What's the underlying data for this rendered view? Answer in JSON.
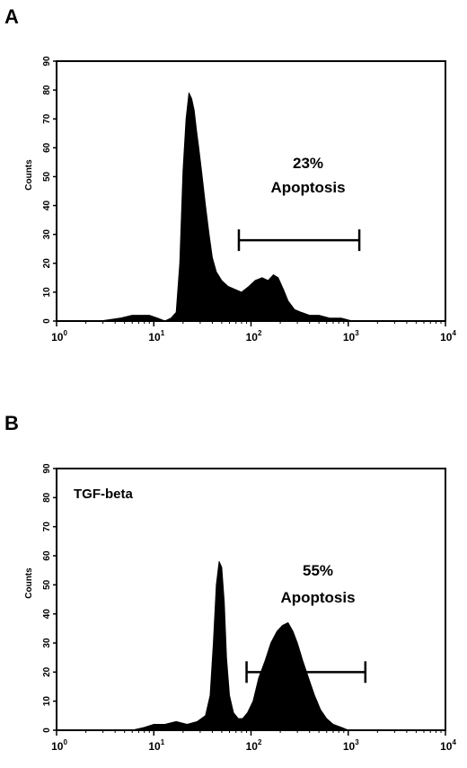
{
  "chart_data": [
    {
      "type": "area",
      "panel": "A",
      "inner_label": "",
      "ylabel": "Counts",
      "xscale": "log",
      "xlim": [
        1,
        10000
      ],
      "ylim": [
        0,
        90
      ],
      "yticks": [
        "0",
        "10",
        "20",
        "30",
        "40",
        "50",
        "60",
        "70",
        "80",
        "90"
      ],
      "xticks": [
        {
          "base": "10",
          "exp": "0"
        },
        {
          "base": "10",
          "exp": "1"
        },
        {
          "base": "10",
          "exp": "2"
        },
        {
          "base": "10",
          "exp": "3"
        },
        {
          "base": "10",
          "exp": "4"
        }
      ],
      "annotation": {
        "percent": "23%",
        "label": "Apoptosis"
      },
      "gate": {
        "from": 75,
        "to": 1300,
        "y": 28
      },
      "x": [
        2.8,
        4.5,
        6,
        9,
        11,
        13,
        15,
        17,
        18.5,
        20,
        21.5,
        23,
        24.5,
        26,
        27.5,
        29,
        31,
        34,
        37,
        40,
        44,
        50,
        58,
        68,
        80,
        95,
        110,
        130,
        150,
        170,
        190,
        215,
        240,
        280,
        330,
        400,
        500,
        650,
        850,
        1100,
        1300
      ],
      "y": [
        0,
        1,
        2,
        2,
        1,
        0,
        1,
        3,
        20,
        52,
        70,
        79,
        77,
        73,
        66,
        60,
        52,
        40,
        30,
        22,
        17,
        14,
        12,
        11,
        10,
        12,
        14,
        15,
        14,
        16,
        15,
        11,
        7,
        4,
        3,
        2,
        2,
        1,
        1,
        0,
        0
      ]
    },
    {
      "type": "area",
      "panel": "B",
      "inner_label": "TGF-beta",
      "ylabel": "Counts",
      "xscale": "log",
      "xlim": [
        1,
        10000
      ],
      "ylim": [
        0,
        90
      ],
      "yticks": [
        "0",
        "10",
        "20",
        "30",
        "40",
        "50",
        "60",
        "70",
        "80",
        "90"
      ],
      "xticks": [
        {
          "base": "10",
          "exp": "0"
        },
        {
          "base": "10",
          "exp": "1"
        },
        {
          "base": "10",
          "exp": "2"
        },
        {
          "base": "10",
          "exp": "3"
        },
        {
          "base": "10",
          "exp": "4"
        }
      ],
      "annotation": {
        "percent": "55%",
        "label": "Apoptosis"
      },
      "gate": {
        "from": 90,
        "to": 1500,
        "y": 20
      },
      "x": [
        6,
        8,
        10,
        13,
        17,
        22,
        28,
        34,
        38,
        41,
        44,
        47,
        50,
        53,
        56,
        60,
        66,
        74,
        82,
        92,
        105,
        120,
        140,
        160,
        185,
        210,
        240,
        270,
        300,
        340,
        390,
        450,
        520,
        600,
        700,
        850,
        1000
      ],
      "y": [
        0,
        1,
        2,
        2,
        3,
        2,
        3,
        5,
        12,
        30,
        50,
        58,
        56,
        44,
        25,
        12,
        6,
        4,
        4,
        6,
        10,
        18,
        24,
        30,
        34,
        36,
        37,
        34,
        30,
        24,
        18,
        12,
        7,
        4,
        2,
        1,
        0
      ]
    }
  ]
}
